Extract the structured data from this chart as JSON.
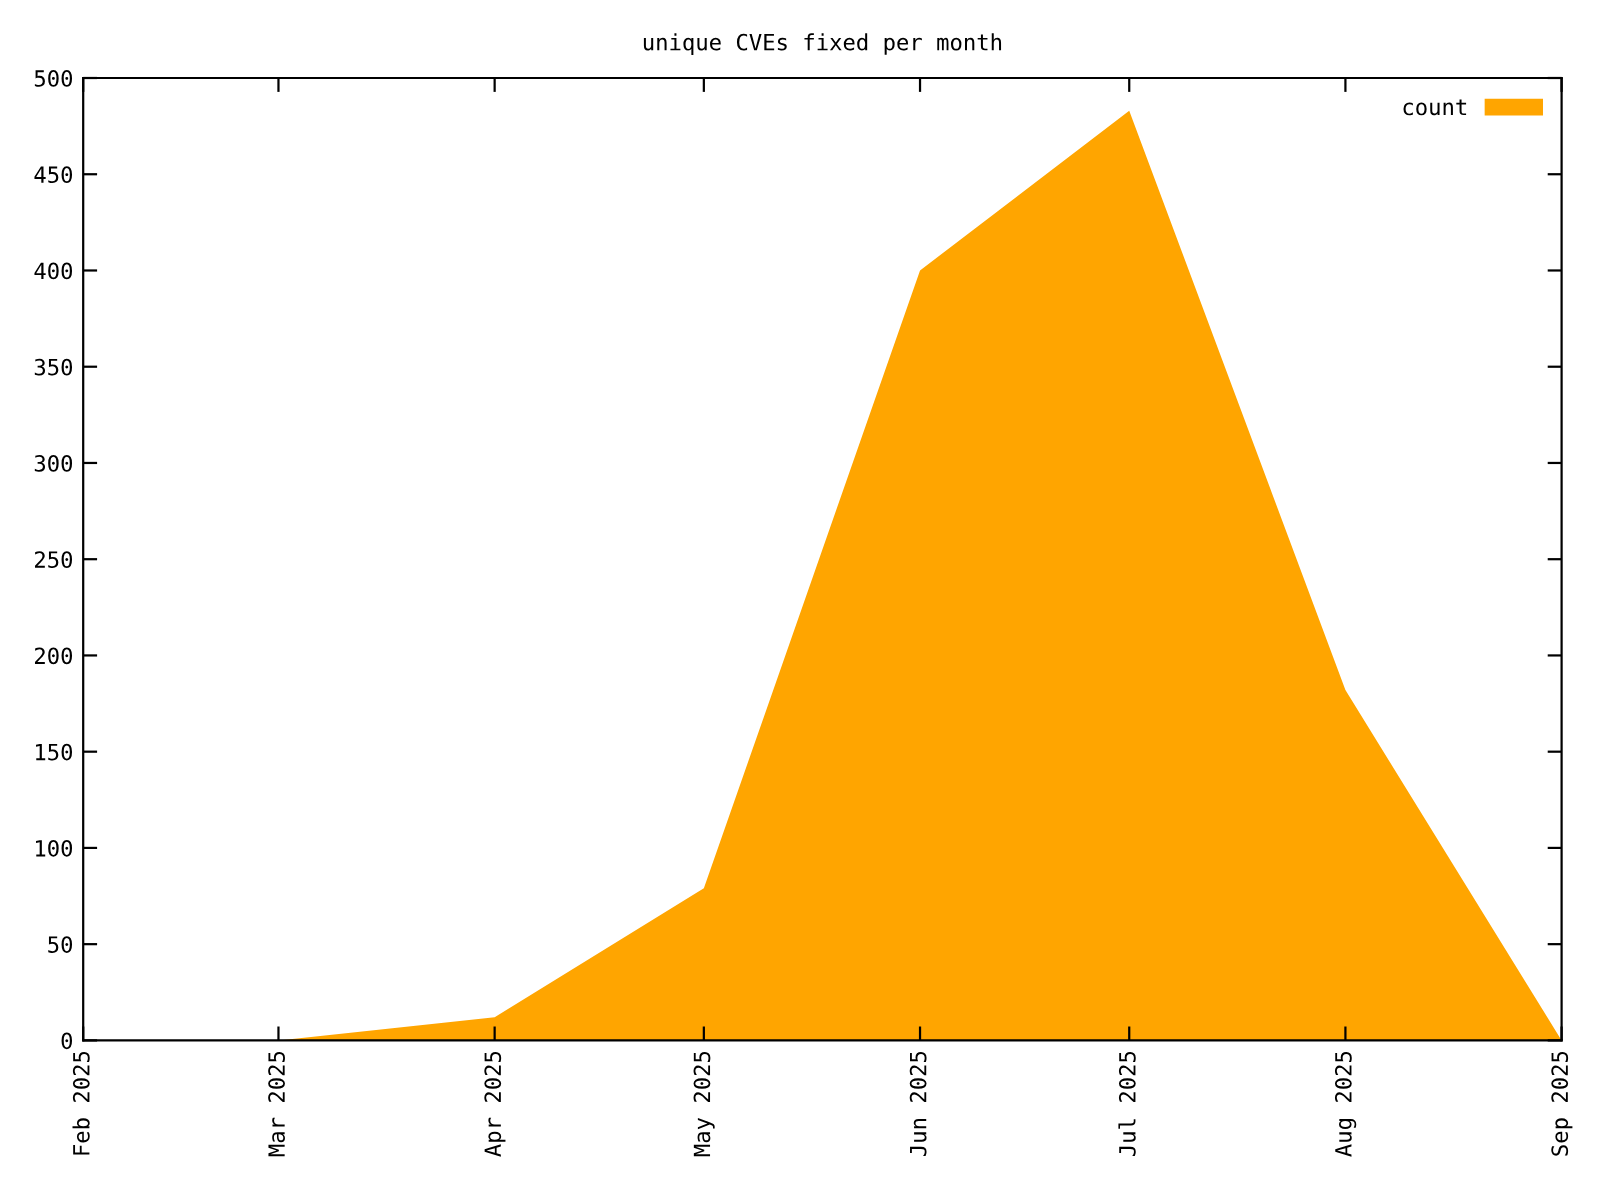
{
  "chart_data": {
    "type": "area",
    "title": "unique CVEs fixed per month",
    "x": [
      "2025-02",
      "2025-03",
      "2025-04",
      "2025-05",
      "2025-06",
      "2025-07",
      "2025-08",
      "2025-09"
    ],
    "series": [
      {
        "name": "count",
        "color": "#ffa500",
        "values": [
          0,
          0,
          12,
          79,
          400,
          483,
          182,
          0
        ]
      }
    ],
    "xlim": [
      "2025-02",
      "2025-09"
    ],
    "xticks": [
      {
        "value": "2025-02",
        "label": "Feb 2025"
      },
      {
        "value": "2025-03",
        "label": "Mar 2025"
      },
      {
        "value": "2025-04",
        "label": "Apr 2025"
      },
      {
        "value": "2025-05",
        "label": "May 2025"
      },
      {
        "value": "2025-06",
        "label": "Jun 2025"
      },
      {
        "value": "2025-07",
        "label": "Jul 2025"
      },
      {
        "value": "2025-08",
        "label": "Aug 2025"
      },
      {
        "value": "2025-09",
        "label": "Sep 2025"
      }
    ],
    "ylim": [
      0,
      500
    ],
    "yticks": [
      0,
      50,
      100,
      150,
      200,
      250,
      300,
      350,
      400,
      450,
      500
    ],
    "grid": false,
    "legend": "top right"
  }
}
